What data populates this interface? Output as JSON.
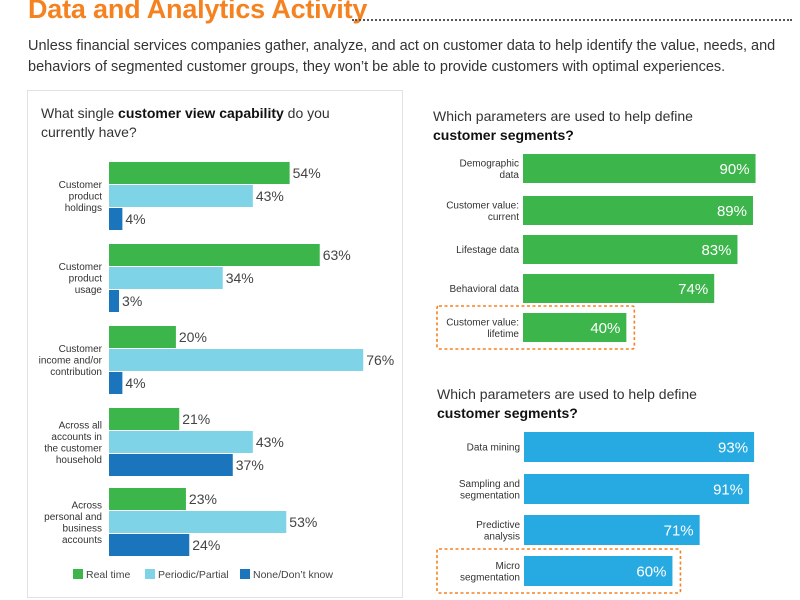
{
  "header": {
    "title": "Data and Analytics Activity",
    "intro": "Unless financial services companies gather, analyze, and act on customer data to help identify the value, needs, and behaviors of segmented customer groups, they won’t be able to provide customers with optimal experiences."
  },
  "colors": {
    "title": "#f58220",
    "green": "#3cb54a",
    "light_blue": "#7fd3e6",
    "dark_blue": "#1a75bc",
    "cyan": "#27aae1",
    "highlight_border": "#f58220"
  },
  "left_question": {
    "pre": "What single ",
    "bold": "customer view capability",
    "post": " do you currently have?"
  },
  "right_top_question": {
    "line1": "Which parameters are used to help define",
    "bold": "customer segments?"
  },
  "right_bottom_question": {
    "line1": "Which parameters are used to help define",
    "bold": "customer segments?"
  },
  "chart_data": [
    {
      "type": "bar",
      "orientation": "horizontal",
      "title": "What single customer view capability do you currently have?",
      "categories": [
        [
          "Customer",
          "product",
          "holdings"
        ],
        [
          "Customer",
          "product",
          "usage"
        ],
        [
          "Customer",
          "income and/or",
          "contribution"
        ],
        [
          "Across all",
          "accounts in",
          "the customer",
          "household"
        ],
        [
          "Across",
          "personal and",
          "business",
          "accounts"
        ]
      ],
      "series": [
        {
          "name": "Real time",
          "color": "#3cb54a",
          "values": [
            54,
            63,
            20,
            21,
            23
          ]
        },
        {
          "name": "Periodic/Partial",
          "color": "#7fd3e6",
          "values": [
            43,
            34,
            76,
            43,
            53
          ]
        },
        {
          "name": "None/Don’t know",
          "color": "#1a75bc",
          "values": [
            4,
            3,
            4,
            37,
            24
          ]
        }
      ],
      "unit": "%",
      "xlim": [
        0,
        100
      ],
      "legend": "bottom"
    },
    {
      "type": "bar",
      "orientation": "horizontal",
      "title": "Which parameters are used to help define customer segments?",
      "categories": [
        [
          "Demographic",
          "data"
        ],
        [
          "Customer value:",
          "current"
        ],
        [
          "Lifestage data"
        ],
        [
          "Behavioral data"
        ],
        [
          "Customer value:",
          "lifetime"
        ]
      ],
      "values": [
        90,
        89,
        83,
        74,
        40
      ],
      "color": "#3cb54a",
      "highlighted": [
        4
      ],
      "unit": "%",
      "xlim": [
        0,
        100
      ]
    },
    {
      "type": "bar",
      "orientation": "horizontal",
      "title": "Which parameters are used to help define customer segments?",
      "categories": [
        [
          "Data mining"
        ],
        [
          "Sampling and",
          "segmentation"
        ],
        [
          "Predictive",
          "analysis"
        ],
        [
          "Micro",
          "segmentation"
        ]
      ],
      "values": [
        93,
        91,
        71,
        60
      ],
      "color": "#27aae1",
      "highlighted": [
        3
      ],
      "unit": "%",
      "xlim": [
        0,
        100
      ]
    }
  ]
}
